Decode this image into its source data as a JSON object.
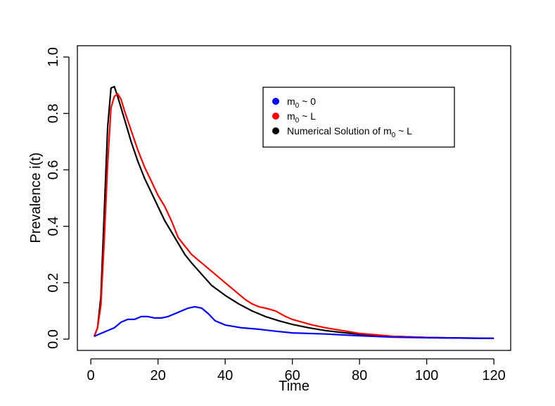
{
  "chart_data": {
    "type": "line",
    "xlabel": "Time",
    "ylabel": "Prevalence i(t)",
    "xlim": [
      -4,
      125
    ],
    "ylim": [
      -0.04,
      1.04
    ],
    "xticks": [
      0,
      20,
      40,
      60,
      80,
      100,
      120
    ],
    "yticks": [
      0.0,
      0.2,
      0.4,
      0.6,
      0.8,
      1.0
    ],
    "xtick_labels": [
      "0",
      "20",
      "40",
      "60",
      "80",
      "100",
      "120"
    ],
    "ytick_labels": [
      "0.0",
      "0.2",
      "0.4",
      "0.6",
      "0.8",
      "1.0"
    ],
    "grid": false,
    "legend_position": "top-right",
    "legend": [
      {
        "prefix": "m",
        "sub": "0",
        "suffix": " ~ 0",
        "color": "#0000ff"
      },
      {
        "prefix": "m",
        "sub": "0",
        "suffix": " ~ L",
        "color": "#ff0000"
      },
      {
        "prefix": "Numerical Solution of m",
        "sub": "0",
        "suffix": " ~ L",
        "color": "#000000"
      }
    ],
    "series": [
      {
        "color": "#0000ff",
        "x": [
          1,
          3,
          5,
          7,
          9,
          11,
          13,
          15,
          17,
          19,
          21,
          23,
          25,
          27,
          29,
          31,
          33,
          35,
          37,
          40,
          45,
          50,
          55,
          60,
          70,
          80,
          90,
          100,
          110,
          120
        ],
        "y": [
          0.01,
          0.02,
          0.03,
          0.04,
          0.06,
          0.07,
          0.07,
          0.08,
          0.08,
          0.075,
          0.075,
          0.08,
          0.09,
          0.1,
          0.11,
          0.115,
          0.11,
          0.09,
          0.065,
          0.05,
          0.04,
          0.035,
          0.028,
          0.022,
          0.018,
          0.012,
          0.007,
          0.005,
          0.004,
          0.003
        ]
      },
      {
        "color": "#ff0000",
        "x": [
          1,
          2,
          3,
          4,
          5,
          6,
          7,
          8,
          9,
          10,
          12,
          14,
          16,
          18,
          20,
          22,
          24,
          26,
          28,
          30,
          32,
          34,
          36,
          38,
          40,
          42,
          44,
          46,
          48,
          50,
          52,
          55,
          58,
          60,
          63,
          66,
          70,
          75,
          80,
          85,
          90,
          95,
          100,
          105,
          110,
          115,
          120
        ],
        "y": [
          0.01,
          0.04,
          0.12,
          0.35,
          0.62,
          0.82,
          0.86,
          0.87,
          0.85,
          0.81,
          0.74,
          0.67,
          0.61,
          0.56,
          0.51,
          0.47,
          0.42,
          0.36,
          0.33,
          0.3,
          0.28,
          0.26,
          0.24,
          0.22,
          0.2,
          0.18,
          0.16,
          0.14,
          0.125,
          0.115,
          0.11,
          0.1,
          0.08,
          0.07,
          0.06,
          0.05,
          0.04,
          0.03,
          0.02,
          0.015,
          0.01,
          0.008,
          0.006,
          0.005,
          0.004,
          0.003,
          0.003
        ]
      },
      {
        "color": "#000000",
        "x": [
          1,
          2,
          3,
          4,
          5,
          6,
          7,
          8,
          10,
          12,
          14,
          16,
          18,
          20,
          22,
          25,
          28,
          30,
          33,
          36,
          40,
          44,
          48,
          52,
          56,
          60,
          65,
          70,
          75,
          80,
          90,
          100,
          110,
          120
        ],
        "y": [
          0.01,
          0.04,
          0.15,
          0.45,
          0.75,
          0.89,
          0.895,
          0.86,
          0.78,
          0.7,
          0.63,
          0.57,
          0.52,
          0.47,
          0.42,
          0.36,
          0.3,
          0.27,
          0.23,
          0.19,
          0.155,
          0.125,
          0.1,
          0.08,
          0.065,
          0.052,
          0.04,
          0.03,
          0.023,
          0.017,
          0.01,
          0.006,
          0.004,
          0.003
        ]
      }
    ]
  }
}
